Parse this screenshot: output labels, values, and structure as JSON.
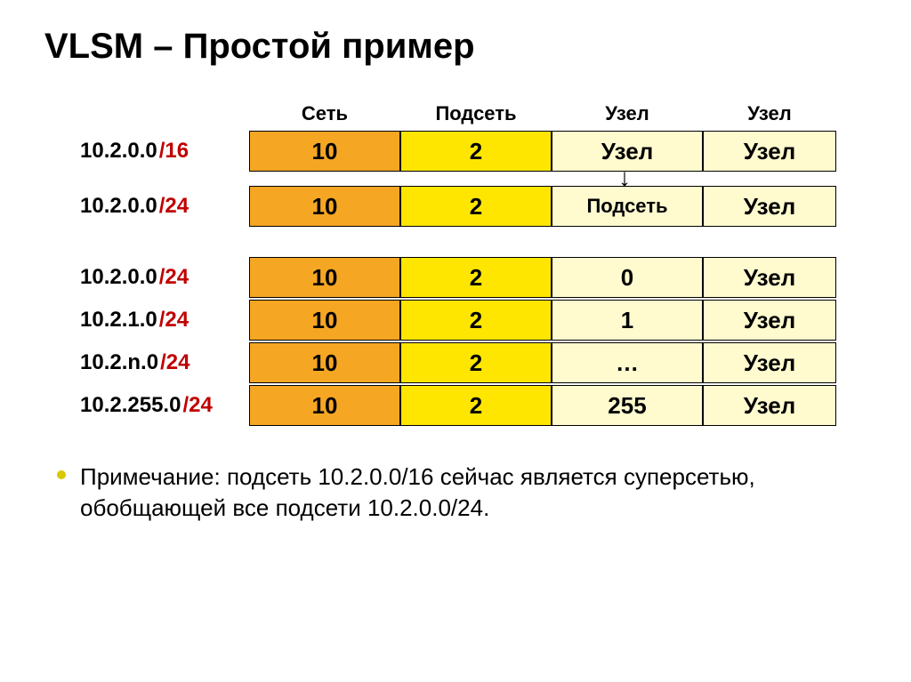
{
  "title": "VLSM – Простой пример",
  "colors": {
    "orange": "#f5a623",
    "yellow": "#ffe600",
    "light_yellow": "#fffbcf",
    "prefix": "#c00000",
    "bullet": "#d9c800"
  },
  "headers": [
    "Сеть",
    "Подсеть",
    "Узел",
    "Узел"
  ],
  "section1": [
    {
      "label_pre": "10.2.0.0",
      "label_pfx": "/16",
      "cells": [
        {
          "text": "10",
          "bg": "orange"
        },
        {
          "text": "2",
          "bg": "yellow"
        },
        {
          "text": "Узел",
          "bg": "light_yellow"
        },
        {
          "text": "Узел",
          "bg": "light_yellow",
          "narrow": true
        }
      ]
    }
  ],
  "section2": [
    {
      "label_pre": "10.2.0.0",
      "label_pfx": "/24",
      "cells": [
        {
          "text": "10",
          "bg": "orange"
        },
        {
          "text": "2",
          "bg": "yellow"
        },
        {
          "text": "Подсеть",
          "bg": "light_yellow",
          "small": true
        },
        {
          "text": "Узел",
          "bg": "light_yellow",
          "narrow": true
        }
      ]
    }
  ],
  "section3": [
    {
      "label_pre": "10.2.0.0",
      "label_pfx": "/24",
      "cells": [
        {
          "text": "10",
          "bg": "orange"
        },
        {
          "text": "2",
          "bg": "yellow"
        },
        {
          "text": "0",
          "bg": "light_yellow"
        },
        {
          "text": "Узел",
          "bg": "light_yellow",
          "narrow": true
        }
      ]
    },
    {
      "label_pre": "10.2.1.0",
      "label_pfx": "/24",
      "cells": [
        {
          "text": "10",
          "bg": "orange"
        },
        {
          "text": "2",
          "bg": "yellow"
        },
        {
          "text": "1",
          "bg": "light_yellow"
        },
        {
          "text": "Узел",
          "bg": "light_yellow",
          "narrow": true
        }
      ]
    },
    {
      "label_pre": "10.2.n.0",
      "label_pfx": "/24",
      "cells": [
        {
          "text": "10",
          "bg": "orange"
        },
        {
          "text": "2",
          "bg": "yellow"
        },
        {
          "text": "…",
          "bg": "light_yellow"
        },
        {
          "text": "Узел",
          "bg": "light_yellow",
          "narrow": true
        }
      ]
    },
    {
      "label_pre": "10.2.255.0",
      "label_pfx": "/24",
      "cells": [
        {
          "text": "10",
          "bg": "orange"
        },
        {
          "text": "2",
          "bg": "yellow"
        },
        {
          "text": "255",
          "bg": "light_yellow"
        },
        {
          "text": "Узел",
          "bg": "light_yellow",
          "narrow": true
        }
      ]
    }
  ],
  "note": "Примечание: подсеть 10.2.0.0/16  сейчас является суперсетью, обобщающей все подсети 10.2.0.0/24."
}
